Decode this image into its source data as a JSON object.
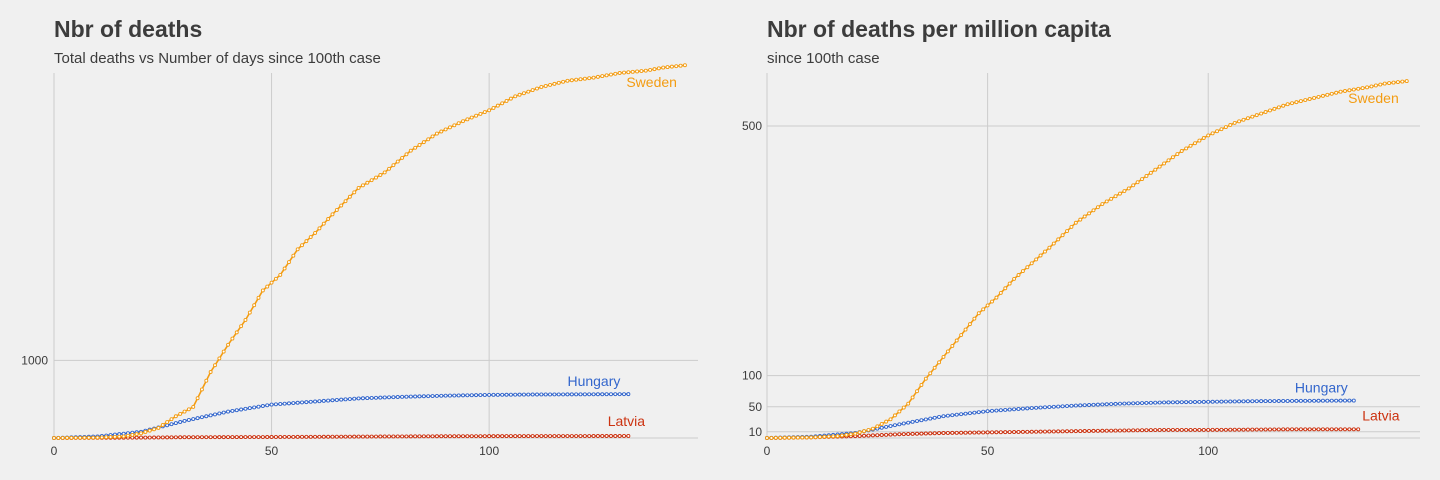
{
  "chart_data": [
    {
      "type": "line",
      "title": "Nbr of deaths",
      "subtitle": "Total deaths vs Number of days since 100th case",
      "xlabel": "",
      "ylabel": "",
      "xlim": [
        0,
        148
      ],
      "ylim": [
        0,
        4700
      ],
      "x_ticks": [
        0,
        50,
        100
      ],
      "y_ticks": [
        1000
      ],
      "grid": true,
      "legend": "inline at line ends",
      "series": [
        {
          "name": "Sweden",
          "color": "#f39c12",
          "points": [
            [
              0,
              0
            ],
            [
              10,
              5
            ],
            [
              16,
              20
            ],
            [
              20,
              60
            ],
            [
              24,
              130
            ],
            [
              28,
              280
            ],
            [
              32,
              400
            ],
            [
              36,
              850
            ],
            [
              40,
              1200
            ],
            [
              44,
              1520
            ],
            [
              48,
              1900
            ],
            [
              52,
              2100
            ],
            [
              56,
              2430
            ],
            [
              60,
              2640
            ],
            [
              64,
              2880
            ],
            [
              70,
              3220
            ],
            [
              76,
              3420
            ],
            [
              82,
              3700
            ],
            [
              88,
              3920
            ],
            [
              94,
              4080
            ],
            [
              100,
              4220
            ],
            [
              106,
              4400
            ],
            [
              112,
              4520
            ],
            [
              118,
              4600
            ],
            [
              124,
              4640
            ],
            [
              130,
              4700
            ],
            [
              136,
              4730
            ],
            [
              140,
              4770
            ],
            [
              145,
              4800
            ]
          ]
        },
        {
          "name": "Hungary",
          "color": "#3366cc",
          "points": [
            [
              0,
              0
            ],
            [
              10,
              20
            ],
            [
              20,
              80
            ],
            [
              30,
              220
            ],
            [
              40,
              340
            ],
            [
              50,
              430
            ],
            [
              60,
              470
            ],
            [
              70,
              510
            ],
            [
              80,
              530
            ],
            [
              90,
              545
            ],
            [
              100,
              555
            ],
            [
              110,
              560
            ],
            [
              120,
              562
            ],
            [
              132,
              565
            ]
          ]
        },
        {
          "name": "Latvia",
          "color": "#cc3311",
          "points": [
            [
              0,
              0
            ],
            [
              10,
              2
            ],
            [
              20,
              5
            ],
            [
              30,
              10
            ],
            [
              50,
              13
            ],
            [
              70,
              18
            ],
            [
              90,
              23
            ],
            [
              110,
              25
            ],
            [
              132,
              26
            ]
          ]
        }
      ]
    },
    {
      "type": "line",
      "title": "Nbr of deaths per million capita",
      "subtitle": "since 100th case",
      "xlabel": "",
      "ylabel": "",
      "xlim": [
        0,
        148
      ],
      "ylim": [
        0,
        585
      ],
      "x_ticks": [
        0,
        50,
        100
      ],
      "y_ticks": [
        10,
        50,
        100,
        500
      ],
      "grid": true,
      "legend": "inline at line ends",
      "series": [
        {
          "name": "Sweden",
          "color": "#f39c12",
          "points": [
            [
              0,
              0
            ],
            [
              10,
              1
            ],
            [
              16,
              3
            ],
            [
              20,
              7
            ],
            [
              24,
              15
            ],
            [
              28,
              30
            ],
            [
              32,
              55
            ],
            [
              36,
              95
            ],
            [
              40,
              130
            ],
            [
              44,
              165
            ],
            [
              48,
              200
            ],
            [
              52,
              225
            ],
            [
              56,
              255
            ],
            [
              60,
              280
            ],
            [
              64,
              305
            ],
            [
              70,
              345
            ],
            [
              76,
              375
            ],
            [
              82,
              400
            ],
            [
              88,
              430
            ],
            [
              94,
              460
            ],
            [
              100,
              485
            ],
            [
              106,
              505
            ],
            [
              112,
              520
            ],
            [
              118,
              535
            ],
            [
              124,
              545
            ],
            [
              130,
              555
            ],
            [
              136,
              562
            ],
            [
              140,
              568
            ],
            [
              145,
              572
            ]
          ]
        },
        {
          "name": "Hungary",
          "color": "#3366cc",
          "points": [
            [
              0,
              0
            ],
            [
              10,
              2
            ],
            [
              20,
              8
            ],
            [
              30,
              22
            ],
            [
              40,
              35
            ],
            [
              50,
              43
            ],
            [
              60,
              48
            ],
            [
              70,
              52
            ],
            [
              80,
              55
            ],
            [
              90,
              57
            ],
            [
              100,
              58
            ],
            [
              110,
              59
            ],
            [
              120,
              59.5
            ],
            [
              133,
              60
            ]
          ]
        },
        {
          "name": "Latvia",
          "color": "#cc3311",
          "points": [
            [
              0,
              0
            ],
            [
              10,
              1
            ],
            [
              20,
              3
            ],
            [
              30,
              6
            ],
            [
              40,
              8
            ],
            [
              50,
              9
            ],
            [
              60,
              10
            ],
            [
              70,
              11
            ],
            [
              80,
              12
            ],
            [
              90,
              13
            ],
            [
              100,
              13
            ],
            [
              110,
              13.5
            ],
            [
              120,
              14
            ],
            [
              134,
              14
            ]
          ]
        }
      ]
    }
  ]
}
